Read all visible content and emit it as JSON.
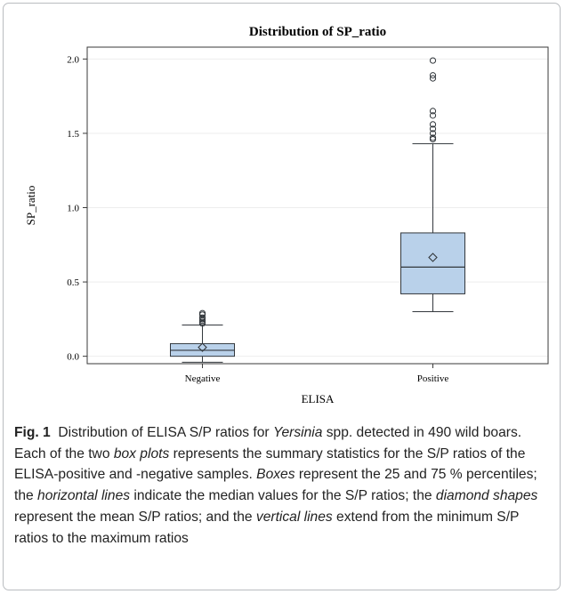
{
  "chart_data": {
    "type": "boxplot",
    "title": "Distribution of SP_ratio",
    "xlabel": "ELISA",
    "ylabel": "SP_ratio",
    "ylim": [
      -0.05,
      2.08
    ],
    "yticks": [
      "0.0",
      "0.5",
      "1.0",
      "1.5",
      "2.0"
    ],
    "categories": [
      "Negative",
      "Positive"
    ],
    "grid": true,
    "series": [
      {
        "category": "Negative",
        "min": -0.04,
        "q1": 0.0,
        "median": 0.04,
        "q3": 0.085,
        "max": 0.21,
        "mean": 0.06,
        "outliers": [
          0.22,
          0.23,
          0.24,
          0.25,
          0.26,
          0.28,
          0.29
        ]
      },
      {
        "category": "Positive",
        "min": 0.3,
        "q1": 0.42,
        "median": 0.6,
        "q3": 0.83,
        "max": 1.43,
        "mean": 0.665,
        "outliers": [
          1.46,
          1.47,
          1.5,
          1.53,
          1.56,
          1.62,
          1.65,
          1.87,
          1.89,
          1.99
        ]
      }
    ],
    "box_fill": "#b9d1ea",
    "box_stroke": "#33383d"
  },
  "caption": {
    "label": "Fig. 1",
    "p1": "Distribution of ELISA S/P ratios for ",
    "i1": "Yersinia",
    "p2": " spp. detected in 490 wild boars. Each of the two ",
    "i2": "box plots",
    "p3": " represents the summary statistics for the S/P ratios of the ELISA-positive and -negative samples. ",
    "i3": "Boxes",
    "p4": " represent the 25 and 75 % percentiles; the ",
    "i4": "horizontal lines",
    "p5": " indicate the median values for the S/P ratios; the ",
    "i5": "diamond shapes",
    "p6": " represent the mean S/P ratios; and the ",
    "i6": "vertical lines",
    "p7": " extend from the minimum S/P ratios to the maximum ratios"
  }
}
